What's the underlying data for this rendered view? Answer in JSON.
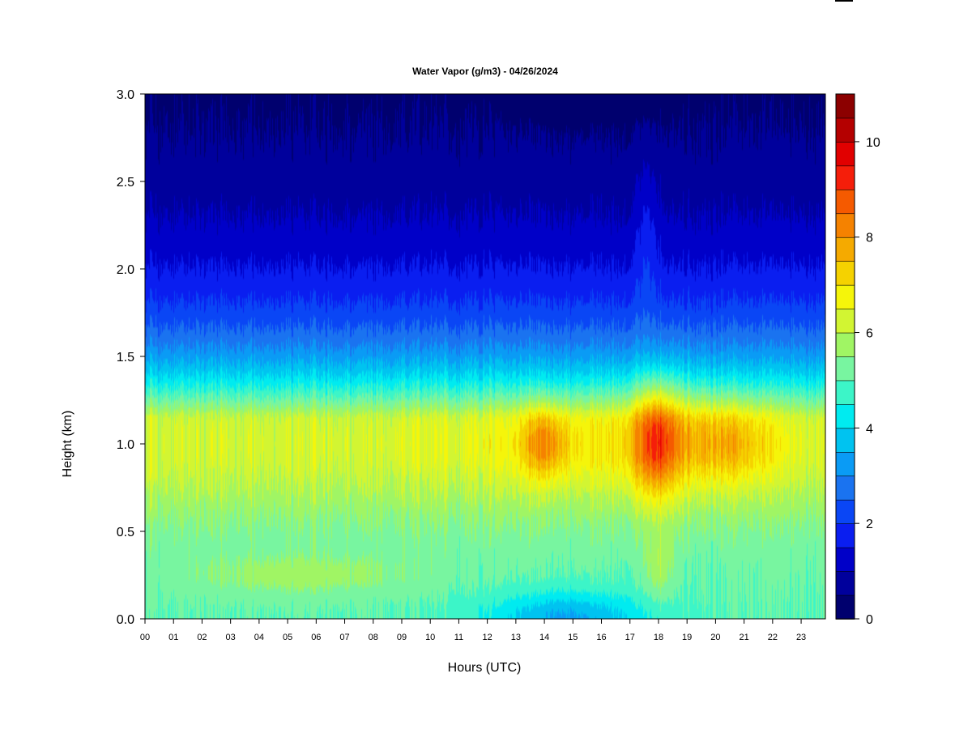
{
  "chart_data": {
    "type": "heatmap",
    "title": "Water Vapor (g/m3) - 04/26/2024",
    "xlabel": "Hours (UTC)",
    "ylabel": "Height (km)",
    "x_ticks": [
      "00",
      "01",
      "02",
      "03",
      "04",
      "05",
      "06",
      "07",
      "08",
      "09",
      "10",
      "11",
      "12",
      "13",
      "14",
      "15",
      "16",
      "17",
      "18",
      "19",
      "20",
      "21",
      "22",
      "23"
    ],
    "x_range": [
      0,
      23.85
    ],
    "y_ticks": [
      "0.0",
      "0.5",
      "1.0",
      "1.5",
      "2.0",
      "2.5",
      "3.0"
    ],
    "y_range": [
      0,
      3
    ],
    "colorbar": {
      "range": [
        0,
        11
      ],
      "ticks": [
        "0",
        "2",
        "4",
        "6",
        "8",
        "10"
      ],
      "levels": [
        "#00006e",
        "#00009c",
        "#0000c8",
        "#0a1ef0",
        "#0a46f5",
        "#1a73f0",
        "#0a9bf5",
        "#00c3f0",
        "#00ebf0",
        "#3cf5c8",
        "#78f5a0",
        "#a0f564",
        "#d2f532",
        "#f5f50a",
        "#f5d200",
        "#f5aa00",
        "#f58200",
        "#f55a00",
        "#f51e0a",
        "#e10000",
        "#b40000",
        "#8c0000"
      ]
    },
    "color_scale": "jet",
    "field_summary": {
      "note_units": "g/m3",
      "max_value_approx": 10.3,
      "max_location": {
        "hour": 18.0,
        "height_km": 1.0
      },
      "secondary_max": {
        "hour": 14.0,
        "height_km": 1.0,
        "value_approx": 8.0
      },
      "surface_dry_period_hours": [
        12,
        17
      ],
      "top_value_approx": 0.5
    }
  },
  "corner_mark_color": "#000000"
}
